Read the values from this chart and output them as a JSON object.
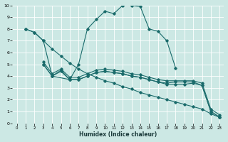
{
  "xlabel": "Humidex (Indice chaleur)",
  "bg_color": "#cce8e4",
  "grid_color": "#ffffff",
  "line_color": "#1a6b6b",
  "xlim": [
    -0.5,
    23.5
  ],
  "ylim": [
    0,
    10
  ],
  "line1": {
    "x": [
      1,
      2,
      3,
      4,
      6,
      7,
      8,
      9,
      10,
      11,
      12,
      13,
      14,
      15,
      16,
      17,
      18
    ],
    "y": [
      8.0,
      7.7,
      7.0,
      4.0,
      3.7,
      5.0,
      8.0,
      8.8,
      9.5,
      9.3,
      10.0,
      10.0,
      9.9,
      8.0,
      7.8,
      7.0,
      4.7
    ]
  },
  "line2": {
    "x": [
      1,
      2,
      3,
      4,
      5,
      6,
      7,
      8,
      9,
      10,
      11,
      12,
      13,
      14,
      15,
      16,
      17,
      18,
      19,
      20,
      21,
      22,
      23
    ],
    "y": [
      8.0,
      7.7,
      7.0,
      6.3,
      5.7,
      5.1,
      4.6,
      4.2,
      3.9,
      3.6,
      3.4,
      3.1,
      2.9,
      2.6,
      2.4,
      2.2,
      2.0,
      1.8,
      1.6,
      1.4,
      1.2,
      0.8,
      0.5
    ]
  },
  "line3": {
    "x": [
      3,
      4,
      5,
      6,
      7,
      8,
      9,
      10,
      11,
      12,
      13,
      14,
      15,
      16,
      17,
      18,
      19,
      20,
      21,
      22,
      23
    ],
    "y": [
      5.0,
      4.0,
      4.5,
      3.7,
      3.7,
      4.0,
      4.3,
      4.4,
      4.3,
      4.2,
      4.0,
      3.9,
      3.7,
      3.5,
      3.4,
      3.5,
      3.5,
      3.5,
      3.2,
      1.0,
      0.5
    ]
  },
  "line4": {
    "x": [
      3,
      4,
      5,
      6,
      7,
      8,
      9,
      10,
      11,
      12,
      13,
      14,
      15,
      16,
      17,
      18,
      19,
      20,
      21,
      22,
      23
    ],
    "y": [
      5.0,
      4.0,
      4.4,
      3.7,
      3.7,
      4.0,
      4.3,
      4.4,
      4.3,
      4.2,
      4.0,
      3.9,
      3.7,
      3.5,
      3.3,
      3.3,
      3.3,
      3.4,
      3.2,
      1.0,
      0.5
    ]
  },
  "line5": {
    "x": [
      3,
      4,
      5,
      6,
      7,
      8,
      9,
      10,
      11,
      12,
      13,
      14,
      15,
      16,
      17,
      18,
      19,
      20,
      21,
      22,
      23
    ],
    "y": [
      5.2,
      4.2,
      4.6,
      3.9,
      3.9,
      4.2,
      4.5,
      4.6,
      4.5,
      4.4,
      4.2,
      4.1,
      3.9,
      3.7,
      3.6,
      3.6,
      3.6,
      3.6,
      3.4,
      1.2,
      0.7
    ]
  }
}
